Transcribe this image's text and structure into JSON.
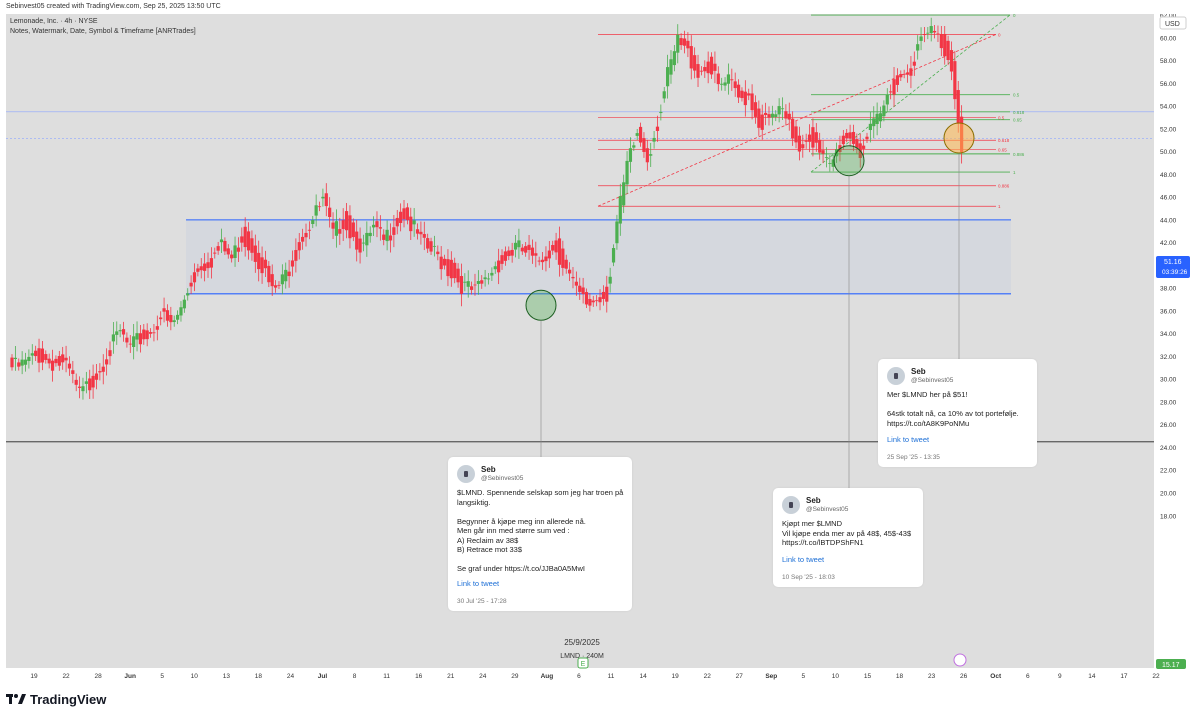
{
  "header": {
    "created": "Sebinvest05 created with TradingView.com, Sep 25, 2025 13:50 UTC",
    "symbol_line": "Lemonade, Inc. · 4h · NYSE",
    "indicator_line": "Notes, Watermark, Date, Symbol & Timeframe [ANRTrades]",
    "currency": "USD"
  },
  "price_labels": {
    "current_price": "51.16",
    "countdown": "03:39:26",
    "bottom_value": "15.17"
  },
  "watermark": {
    "date": "25/9/2025",
    "symbol": "LMND · 240M"
  },
  "colors": {
    "up": "#4caf50",
    "down": "#f23645",
    "blue_line": "#2962ff",
    "fib_green": "#4caf50",
    "fib_red": "#f23645",
    "bg": "#dedede",
    "range_fill": "#d2d5de"
  },
  "chart_data": {
    "type": "candlestick",
    "ylim": [
      15,
      72
    ],
    "ytick_labels": [
      "18.00",
      "20.00",
      "22.00",
      "24.00",
      "26.00",
      "28.00",
      "30.00",
      "32.00",
      "34.00",
      "36.00",
      "38.00",
      "40.00",
      "42.00",
      "44.00",
      "46.00",
      "48.00",
      "50.00",
      "52.00",
      "54.00",
      "56.00",
      "58.00",
      "60.00",
      "62.00",
      "64.00",
      "66.00",
      "68.00",
      "70.00"
    ],
    "xtick_labels": [
      "19",
      "22",
      "28",
      "Jun",
      "5",
      "10",
      "13",
      "18",
      "24",
      "Jul",
      "8",
      "11",
      "16",
      "21",
      "24",
      "29",
      "Aug",
      "6",
      "11",
      "14",
      "19",
      "22",
      "27",
      "Sep",
      "5",
      "10",
      "15",
      "18",
      "23",
      "26",
      "Oct",
      "6",
      "9",
      "14",
      "17",
      "22"
    ],
    "close_path": [
      31.5,
      32,
      32.5,
      32,
      31.8,
      31,
      29,
      30,
      31.5,
      33,
      34.5,
      33,
      34,
      34.5,
      36,
      35,
      36.5,
      39,
      40.5,
      41,
      42,
      41,
      43,
      42,
      40.5,
      38,
      39,
      41,
      43,
      44.5,
      46,
      43,
      44.5,
      43,
      42,
      43.5,
      42.5,
      44,
      45,
      43.5,
      42,
      41.5,
      40.5,
      39.5,
      38.5,
      38,
      39,
      40.5,
      41,
      42,
      41.5,
      40.5,
      41.5,
      42,
      40,
      38,
      37,
      37.5,
      38,
      44,
      49,
      52,
      50,
      53,
      57,
      60,
      59,
      57.5,
      58,
      56,
      56.5,
      55,
      55.5,
      53,
      53,
      54,
      52.5,
      51,
      52,
      50,
      49,
      51,
      52,
      50.5,
      52,
      53.5,
      56,
      57,
      58,
      60,
      61,
      60,
      58,
      51.2
    ],
    "horizontal_levels": [
      {
        "name": "range-top",
        "value": 44
      },
      {
        "name": "range-bottom",
        "value": 37.5
      },
      {
        "name": "black-support",
        "value": 24.5
      }
    ],
    "fib_upper_red": [
      {
        "value": 60.3,
        "label": "0"
      },
      {
        "value": 53.0,
        "label": "0.5"
      },
      {
        "value": 51.0,
        "label": "0.618"
      },
      {
        "value": 50.2,
        "label": "0.65"
      },
      {
        "value": 47.0,
        "label": "0.886"
      },
      {
        "value": 45.2,
        "label": "1"
      }
    ],
    "fib_green": [
      {
        "value": 62,
        "label": "0"
      },
      {
        "value": 55,
        "label": "0.5"
      },
      {
        "value": 53.5,
        "label": "0.618"
      },
      {
        "value": 52.8,
        "label": "0.65"
      },
      {
        "value": 49.8,
        "label": "0.886"
      },
      {
        "value": 48.2,
        "label": "1"
      }
    ],
    "fib_small_labels": [
      "0",
      "0",
      "0.5",
      "0.618",
      "0.65",
      "0.618",
      "0.65",
      "0.886",
      "0.886",
      "1",
      "1"
    ]
  },
  "tweets": [
    {
      "name": "Seb",
      "handle": "@Sebinvest05",
      "text": "$LMND. Spennende selskap som jeg har troen på langsiktig.\n\nBegynner å kjøpe meg inn allerede nå.\nMen går inn med større sum ved :\nA) Reclaim av 38$\nB) Retrace mot 33$\n\nSe graf under https://t.co/JJBa0A5MwI",
      "link": "Link to tweet",
      "date": "30 Jul '25 - 17:28"
    },
    {
      "name": "Seb",
      "handle": "@Sebinvest05",
      "text": "Kjøpt mer $LMND\nVil kjøpe enda mer av på 48$, 45$-43$\nhttps://t.co/lBTDPShFN1",
      "link": "Link to tweet",
      "date": "10 Sep '25 - 18:03"
    },
    {
      "name": "Seb",
      "handle": "@Sebinvest05",
      "text": "Mer $LMND her på $51!\n\n64stk totalt nå, ca 10% av tot portefølje.\nhttps://t.co/tA8K9PoNMu",
      "link": "Link to tweet",
      "date": "25 Sep '25 - 13:35"
    }
  ],
  "footer": {
    "brand": "TradingView"
  }
}
